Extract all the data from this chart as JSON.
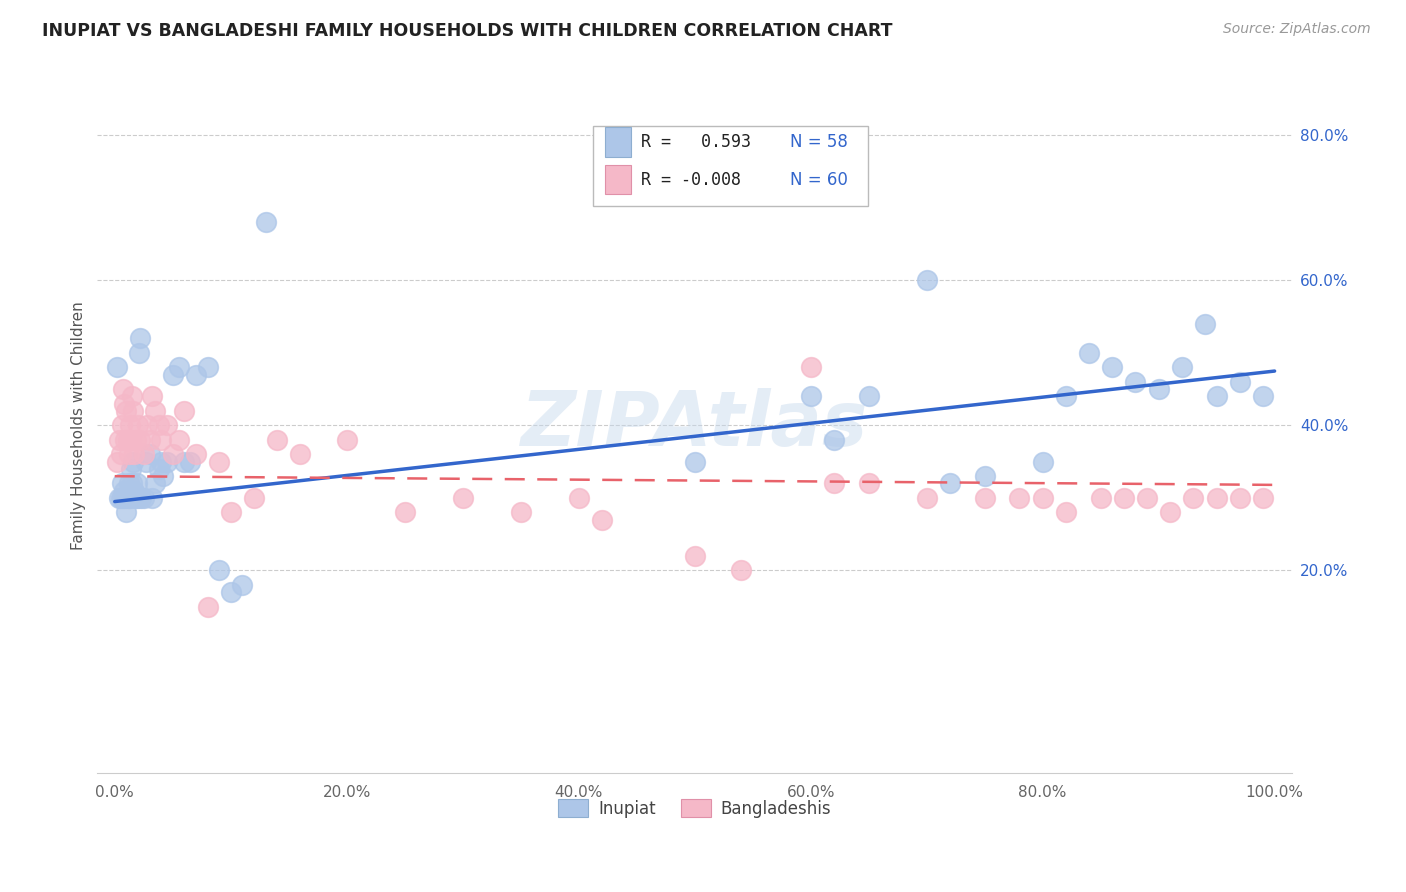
{
  "title": "INUPIAT VS BANGLADESHI FAMILY HOUSEHOLDS WITH CHILDREN CORRELATION CHART",
  "source": "Source: ZipAtlas.com",
  "ylabel": "Family Households with Children",
  "watermark": "ZIPAtlas",
  "legend_r_inupiat": "R =   0.593",
  "legend_n_inupiat": "N = 58",
  "legend_r_bangladeshi": "R = -0.008",
  "legend_n_bangladeshi": "N = 60",
  "inupiat_color": "#adc6e8",
  "bangladeshi_color": "#f5b8c8",
  "trend_inupiat_color": "#3366cc",
  "trend_bangladeshi_color": "#e8626a",
  "inupiat_x": [
    0.002,
    0.004,
    0.005,
    0.006,
    0.007,
    0.008,
    0.009,
    0.01,
    0.011,
    0.012,
    0.013,
    0.014,
    0.015,
    0.016,
    0.017,
    0.018,
    0.019,
    0.02,
    0.021,
    0.022,
    0.023,
    0.025,
    0.027,
    0.03,
    0.032,
    0.035,
    0.038,
    0.04,
    0.042,
    0.045,
    0.05,
    0.055,
    0.06,
    0.065,
    0.07,
    0.08,
    0.09,
    0.1,
    0.11,
    0.13,
    0.5,
    0.6,
    0.62,
    0.65,
    0.7,
    0.72,
    0.75,
    0.8,
    0.82,
    0.84,
    0.86,
    0.88,
    0.9,
    0.92,
    0.94,
    0.95,
    0.97,
    0.99
  ],
  "inupiat_y": [
    0.48,
    0.3,
    0.3,
    0.32,
    0.3,
    0.31,
    0.3,
    0.28,
    0.3,
    0.32,
    0.3,
    0.34,
    0.32,
    0.35,
    0.31,
    0.3,
    0.32,
    0.3,
    0.5,
    0.52,
    0.3,
    0.3,
    0.35,
    0.36,
    0.3,
    0.32,
    0.34,
    0.35,
    0.33,
    0.35,
    0.47,
    0.48,
    0.35,
    0.35,
    0.47,
    0.48,
    0.2,
    0.17,
    0.18,
    0.68,
    0.35,
    0.44,
    0.38,
    0.44,
    0.6,
    0.32,
    0.33,
    0.35,
    0.44,
    0.5,
    0.48,
    0.46,
    0.45,
    0.48,
    0.54,
    0.44,
    0.46,
    0.44
  ],
  "bangladeshi_x": [
    0.002,
    0.004,
    0.005,
    0.006,
    0.007,
    0.008,
    0.009,
    0.01,
    0.011,
    0.012,
    0.013,
    0.014,
    0.015,
    0.016,
    0.017,
    0.018,
    0.02,
    0.022,
    0.025,
    0.028,
    0.03,
    0.032,
    0.035,
    0.038,
    0.04,
    0.045,
    0.05,
    0.055,
    0.06,
    0.07,
    0.08,
    0.09,
    0.1,
    0.12,
    0.14,
    0.16,
    0.2,
    0.25,
    0.3,
    0.35,
    0.4,
    0.42,
    0.5,
    0.54,
    0.6,
    0.62,
    0.65,
    0.7,
    0.75,
    0.78,
    0.8,
    0.82,
    0.85,
    0.87,
    0.89,
    0.91,
    0.93,
    0.95,
    0.97,
    0.99
  ],
  "bangladeshi_y": [
    0.35,
    0.38,
    0.36,
    0.4,
    0.45,
    0.43,
    0.38,
    0.42,
    0.38,
    0.36,
    0.4,
    0.38,
    0.44,
    0.42,
    0.36,
    0.38,
    0.4,
    0.38,
    0.36,
    0.4,
    0.38,
    0.44,
    0.42,
    0.4,
    0.38,
    0.4,
    0.36,
    0.38,
    0.42,
    0.36,
    0.15,
    0.35,
    0.28,
    0.3,
    0.38,
    0.36,
    0.38,
    0.28,
    0.3,
    0.28,
    0.3,
    0.27,
    0.22,
    0.2,
    0.48,
    0.32,
    0.32,
    0.3,
    0.3,
    0.3,
    0.3,
    0.28,
    0.3,
    0.3,
    0.3,
    0.28,
    0.3,
    0.3,
    0.3,
    0.3
  ],
  "trend_inupiat_x0": 0.0,
  "trend_inupiat_x1": 1.0,
  "trend_inupiat_y0": 0.295,
  "trend_inupiat_y1": 0.475,
  "trend_bangladeshi_x0": 0.0,
  "trend_bangladeshi_x1": 1.0,
  "trend_bangladeshi_y0": 0.33,
  "trend_bangladeshi_y1": 0.318,
  "xlim": [
    -0.015,
    1.015
  ],
  "ylim": [
    -0.08,
    0.88
  ],
  "yticks": [
    0.2,
    0.4,
    0.6,
    0.8
  ],
  "ytick_labels": [
    "20.0%",
    "40.0%",
    "60.0%",
    "80.0%"
  ],
  "xticks": [
    0.0,
    0.2,
    0.4,
    0.6,
    0.8,
    1.0
  ],
  "xtick_labels": [
    "0.0%",
    "20.0%",
    "40.0%",
    "60.0%",
    "80.0%",
    "100.0%"
  ]
}
